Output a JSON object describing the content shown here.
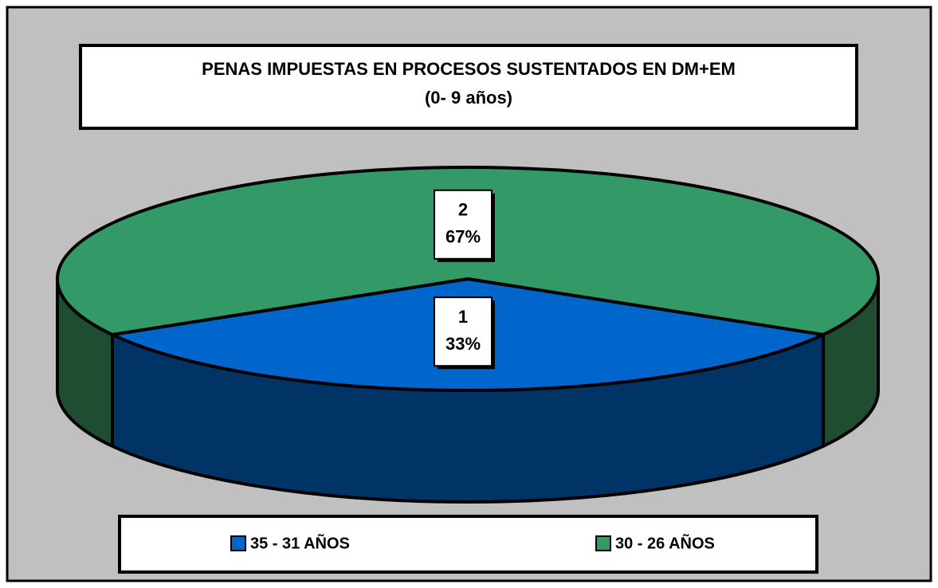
{
  "chart_data": {
    "type": "pie3d",
    "title_lines": [
      "PENAS IMPUESTAS EN PROCESOS SUSTENTADOS EN DM+EM",
      "(0- 9 años)"
    ],
    "categories": [
      "35 - 31 AÑOS",
      "30 - 26 AÑOS"
    ],
    "values": [
      1,
      2
    ],
    "percents": [
      33,
      67
    ],
    "percent_labels": [
      "33%",
      "67%"
    ],
    "colors": [
      "#0066cc",
      "#339966"
    ],
    "side_colors": [
      "#003366",
      "#1e4d32"
    ],
    "legend": "bottom"
  }
}
